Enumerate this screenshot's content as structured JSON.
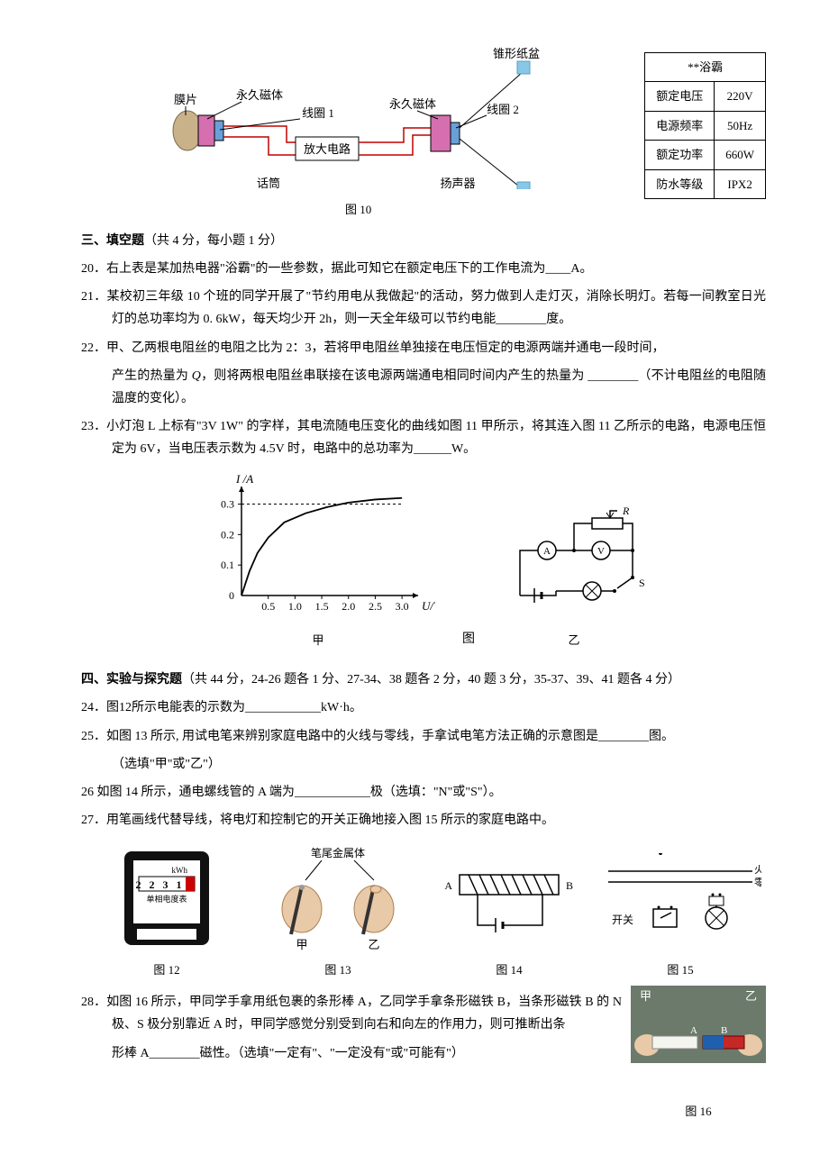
{
  "fig10": {
    "labels": {
      "membrane": "膜片",
      "perm_magnet_left": "永久磁体",
      "coil1": "线圈 1",
      "amp": "放大电路",
      "mic": "话筒",
      "perm_magnet_right": "永久磁体",
      "coil2": "线圈 2",
      "cone": "锥形纸盆",
      "speaker": "扬声器"
    },
    "caption": "图 10",
    "colors": {
      "wire": "#c00000",
      "box_border": "#000",
      "magnet_fill": "#d56fb0",
      "diaphragm": "#9aa6b2",
      "cone": "#88c7e6",
      "membrane": "#c9b28a"
    }
  },
  "spec_table": {
    "title": "**浴霸",
    "rows": [
      [
        "额定电压",
        "220V"
      ],
      [
        "电源频率",
        "50Hz"
      ],
      [
        "额定功率",
        "660W"
      ],
      [
        "防水等级",
        "IPX2"
      ]
    ]
  },
  "section3": {
    "heading": "三、填空题",
    "note": "（共 4 分，每小题 1 分）"
  },
  "q20": "20．右上表是某加热电器\"浴霸\"的一些参数，据此可知它在额定电压下的工作电流为____A。",
  "q21": "21．某校初三年级 10 个班的同学开展了\"节约用电从我做起\"的活动，努力做到人走灯灭，消除长明灯。若每一间教室日光灯的总功率均为 0. 6kW，每天均少开 2h，则一天全年级可以节约电能________度。",
  "q22_a": "22．甲、乙两根电阻丝的电阻之比为 2：3，若将甲电阻丝单独接在电压恒定的电源两端并通电一段时间，",
  "q22_b": "产生的热量为 ",
  "q22_Q": "Q",
  "q22_c": "，则将两根电阻丝串联接在该电源两端通电相同时间内产生的热量为 ________（不计电阻丝的电阻随温度的变化）。",
  "q23": "23．小灯泡 L 上标有\"3V 1W\" 的字样，其电流随电压变化的曲线如图 11 甲所示，将其连入图 11 乙所示的电路，电源电压恒定为 6V，当电压表示数为 4.5V 时，电路中的总功率为______W。",
  "chart": {
    "ylabel": "I /A",
    "xlabel": "U/V",
    "xticks": [
      "0.5",
      "1.0",
      "1.5",
      "2.0",
      "2.5",
      "3.0"
    ],
    "yticks": [
      "0.1",
      "0.2",
      "0.3"
    ],
    "title_left": "甲",
    "title_right": "乙",
    "caption_center": "图",
    "curve_points": [
      [
        0,
        0
      ],
      [
        0.15,
        0.08
      ],
      [
        0.3,
        0.14
      ],
      [
        0.5,
        0.19
      ],
      [
        0.8,
        0.24
      ],
      [
        1.2,
        0.27
      ],
      [
        1.6,
        0.29
      ],
      [
        2.0,
        0.305
      ],
      [
        2.5,
        0.315
      ],
      [
        3.0,
        0.32
      ]
    ],
    "axis_color": "#000",
    "curve_color": "#000",
    "dash": "3,3"
  },
  "circuit_yi": {
    "labels": {
      "R": "R",
      "A": "A",
      "V": "V",
      "S": "S"
    }
  },
  "section4": {
    "heading": "四、实验与探究题",
    "note": "（共 44 分，24-26 题各 1 分、27-34、38 题各 2 分，40 题 3 分，35-37、39、41 题各 4 分）"
  },
  "q24": "24．图12所示电能表的示数为____________kW·h。",
  "q25_a": "25．如图 13 所示, 用试电笔来辨别家庭电路中的火线与零线，手拿试电笔方法正确的示意图是________图。",
  "q25_b": "（选填\"甲\"或\"乙\"）",
  "q26": "26  如图 14 所示，通电螺线管的 A 端为____________极（选填：\"N\"或\"S\"）。",
  "q27": "27．用笔画线代替导线，将电灯和控制它的开关正确地接入图 15 所示的家庭电路中。",
  "fig12": {
    "kwh": "kWh",
    "digits": "2 2 3 1 4",
    "label": "单相电度表",
    "caption": "图 12"
  },
  "fig13": {
    "tip_label": "笔尾金属体",
    "left": "甲",
    "right": "乙",
    "caption": "图 13"
  },
  "fig14": {
    "A": "A",
    "B": "B",
    "caption": "图 14"
  },
  "fig15": {
    "live": "火线",
    "neutral": "零线",
    "switch": "开关",
    "caption": "图 15"
  },
  "q28_a": "28．如图 16 所示，甲同学手拿用纸包裹的条形棒 A，乙同学手拿条形磁铁 B，当条形磁铁 B 的 N 极、S 极分别靠近 A 时，甲同学感觉分别受到向右和向左的作用力，则可推断出条",
  "q28_b": "形棒 A________磁性。（选填\"一定有\"、\"一定没有\"或\"可能有\"）",
  "fig16": {
    "A": "A",
    "B": "B",
    "left": "甲",
    "right": "乙",
    "caption": "图 16"
  }
}
